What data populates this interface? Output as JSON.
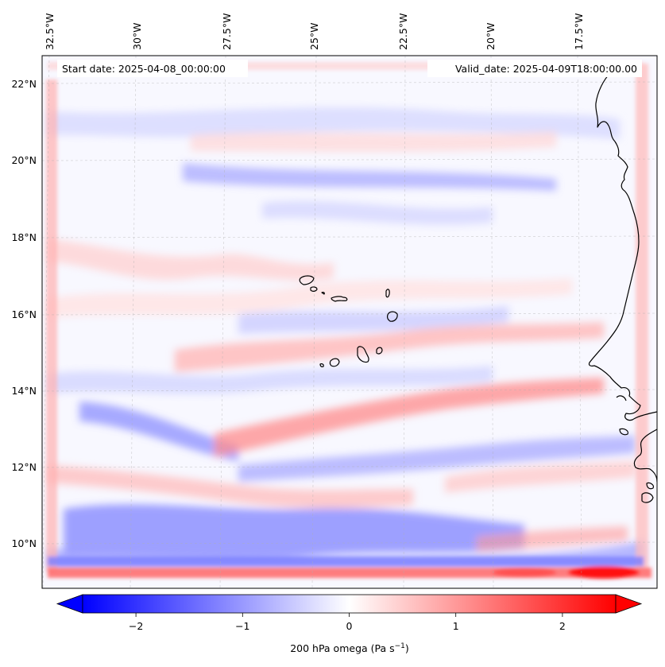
{
  "map": {
    "start_date": "Start date: 2025-04-08_00:00:00",
    "valid_date": "Valid_date: 2025-04-09T18:00:00.00",
    "lon_labels": [
      "32.5°W",
      "30°W",
      "27.5°W",
      "25°W",
      "22.5°W",
      "20°W",
      "17.5°W"
    ],
    "lat_labels": [
      "22°N",
      "20°N",
      "18°N",
      "16°N",
      "14°N",
      "12°N",
      "10°N"
    ],
    "colors": {
      "positive": "#ff0000",
      "negative": "#0000ff",
      "neutral": "#ffffff",
      "coastline": "#000000",
      "gridline": "#b0b0b0"
    }
  },
  "colorbar": {
    "label": "200 hPa omega (Pa s",
    "label_exponent": "−1",
    "label_close": ")",
    "ticks": [
      "−2",
      "−1",
      "0",
      "1",
      "2"
    ],
    "tick_values": [
      -2,
      -1,
      0,
      1,
      2
    ],
    "range": [
      -2.5,
      2.5
    ],
    "extend": "both",
    "colormap": "bwr"
  }
}
